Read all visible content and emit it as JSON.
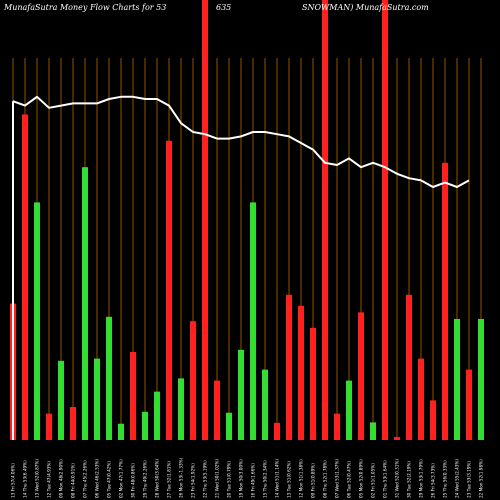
{
  "title": {
    "left": "MunafaSutra  Money Flow  Charts for 53",
    "middle": "635",
    "right": "SNOWMAN) MunafaSutra.com"
  },
  "colors": {
    "background": "#000000",
    "grid": "#b86400",
    "up": "#33dd33",
    "down": "#ff2020",
    "line": "#ffffff"
  },
  "chart_data": {
    "type": "bar",
    "ylim": [
      0,
      100
    ],
    "highlight_bars": [
      16,
      41,
      50
    ],
    "bars": [
      {
        "label": "13 Fri 57(4.06%)",
        "value": 31,
        "color": "down"
      },
      {
        "label": "14 Thu 53(6.49%)",
        "value": 74,
        "color": "down"
      },
      {
        "label": "13 Wed 52(0.87%)",
        "value": 54,
        "color": "up"
      },
      {
        "label": "12 Tue 47(4.93%)",
        "value": 6,
        "color": "down"
      },
      {
        "label": "09 Mon 48(2.90%)",
        "value": 18,
        "color": "up"
      },
      {
        "label": "08 Fri 44(0.91%)",
        "value": 7.5,
        "color": "down"
      },
      {
        "label": "07 Thu 45(2.26%)",
        "value": 62,
        "color": "up"
      },
      {
        "label": "06 Wed 46(2.53%)",
        "value": 18.5,
        "color": "up"
      },
      {
        "label": "05 Tue 47(0.42%)",
        "value": 28,
        "color": "up"
      },
      {
        "label": "02 Mon 47(1.77%)",
        "value": 3.7,
        "color": "up"
      },
      {
        "label": "30 Fri 48(0.86%)",
        "value": 20,
        "color": "down"
      },
      {
        "label": "29 Thu 49(2.26%)",
        "value": 6.4,
        "color": "up"
      },
      {
        "label": "28 Wed 50(3.64%)",
        "value": 11,
        "color": "up"
      },
      {
        "label": "27 Tue 52(1.81%)",
        "value": 68,
        "color": "down"
      },
      {
        "label": "26 Mon 53(-1.33%)",
        "value": 14,
        "color": "up"
      },
      {
        "label": "23 Fri 54(1.92%)",
        "value": 27,
        "color": "down"
      },
      {
        "label": "22 Thu 53(5.19%)",
        "value": 100,
        "color": "down"
      },
      {
        "label": "21 Wed 50(1.02%)",
        "value": 13.5,
        "color": "down"
      },
      {
        "label": "20 Tue 51(0.79%)",
        "value": 6.2,
        "color": "up"
      },
      {
        "label": "19 Mon 50(3.00%)",
        "value": 20.5,
        "color": "up"
      },
      {
        "label": "16 Fri 49(1.66%)",
        "value": 54,
        "color": "up"
      },
      {
        "label": "15 Thu 50(2.34%)",
        "value": 16,
        "color": "up"
      },
      {
        "label": "14 Wed 51(1.14%)",
        "value": 3.9,
        "color": "down"
      },
      {
        "label": "13 Tue 51(0.62%)",
        "value": 33,
        "color": "down"
      },
      {
        "label": "12 Mon 51(1.38%)",
        "value": 30.5,
        "color": "down"
      },
      {
        "label": "09 Fri 51(0.89%)",
        "value": 25.5,
        "color": "down"
      },
      {
        "label": "08 Thu 52(1.78%)",
        "value": 100,
        "color": "down"
      },
      {
        "label": "07 Wed 53(1.37%)",
        "value": 6,
        "color": "down"
      },
      {
        "label": "06 Tue 52(0.47%)",
        "value": 13.5,
        "color": "up"
      },
      {
        "label": "05 Mon 52(0.89%)",
        "value": 29,
        "color": "down"
      },
      {
        "label": "02 Fri 51(1.05%)",
        "value": 4,
        "color": "up"
      },
      {
        "label": "01 Thu 53(1.64%)",
        "value": 100,
        "color": "down"
      },
      {
        "label": "31 Wed 52(0.31%)",
        "value": 0.7,
        "color": "down"
      },
      {
        "label": "30 Tue 52(2.19%)",
        "value": 33,
        "color": "down"
      },
      {
        "label": "29 Mon 53(1.79%)",
        "value": 18.5,
        "color": "down"
      },
      {
        "label": "26 Fri 54(3.73%)",
        "value": 9,
        "color": "down"
      },
      {
        "label": "25 Thu 56(0.33%)",
        "value": 63,
        "color": "down"
      },
      {
        "label": "24 Wed 55(2.43%)",
        "value": 27.5,
        "color": "up"
      },
      {
        "label": "23 Tue 53(3.19%)",
        "value": 16,
        "color": "down"
      },
      {
        "label": "22 Mon 52(1.98%)",
        "value": 27.5,
        "color": "up"
      }
    ],
    "line": [
      {
        "x": 0,
        "y": 77
      },
      {
        "x": 1,
        "y": 76
      },
      {
        "x": 2,
        "y": 78
      },
      {
        "x": 3,
        "y": 75.5
      },
      {
        "x": 4,
        "y": 76
      },
      {
        "x": 5,
        "y": 76.5
      },
      {
        "x": 6,
        "y": 76.5
      },
      {
        "x": 7,
        "y": 76.5
      },
      {
        "x": 8,
        "y": 77.5
      },
      {
        "x": 9,
        "y": 78
      },
      {
        "x": 10,
        "y": 78
      },
      {
        "x": 11,
        "y": 77.5
      },
      {
        "x": 12,
        "y": 77.5
      },
      {
        "x": 13,
        "y": 76
      },
      {
        "x": 14,
        "y": 72
      },
      {
        "x": 15,
        "y": 70
      },
      {
        "x": 16,
        "y": 69.5
      },
      {
        "x": 17,
        "y": 68.5
      },
      {
        "x": 18,
        "y": 68.5
      },
      {
        "x": 19,
        "y": 69
      },
      {
        "x": 20,
        "y": 70
      },
      {
        "x": 21,
        "y": 70
      },
      {
        "x": 22,
        "y": 69.5
      },
      {
        "x": 23,
        "y": 69
      },
      {
        "x": 24,
        "y": 67.5
      },
      {
        "x": 25,
        "y": 66
      },
      {
        "x": 26,
        "y": 63
      },
      {
        "x": 27,
        "y": 62.5
      },
      {
        "x": 28,
        "y": 64
      },
      {
        "x": 29,
        "y": 62
      },
      {
        "x": 30,
        "y": 63
      },
      {
        "x": 31,
        "y": 62
      },
      {
        "x": 32,
        "y": 60.5
      },
      {
        "x": 33,
        "y": 59.5
      },
      {
        "x": 34,
        "y": 59
      },
      {
        "x": 35,
        "y": 57.5
      },
      {
        "x": 36,
        "y": 58.5
      },
      {
        "x": 37,
        "y": 57.5
      },
      {
        "x": 38,
        "y": 59
      }
    ]
  }
}
